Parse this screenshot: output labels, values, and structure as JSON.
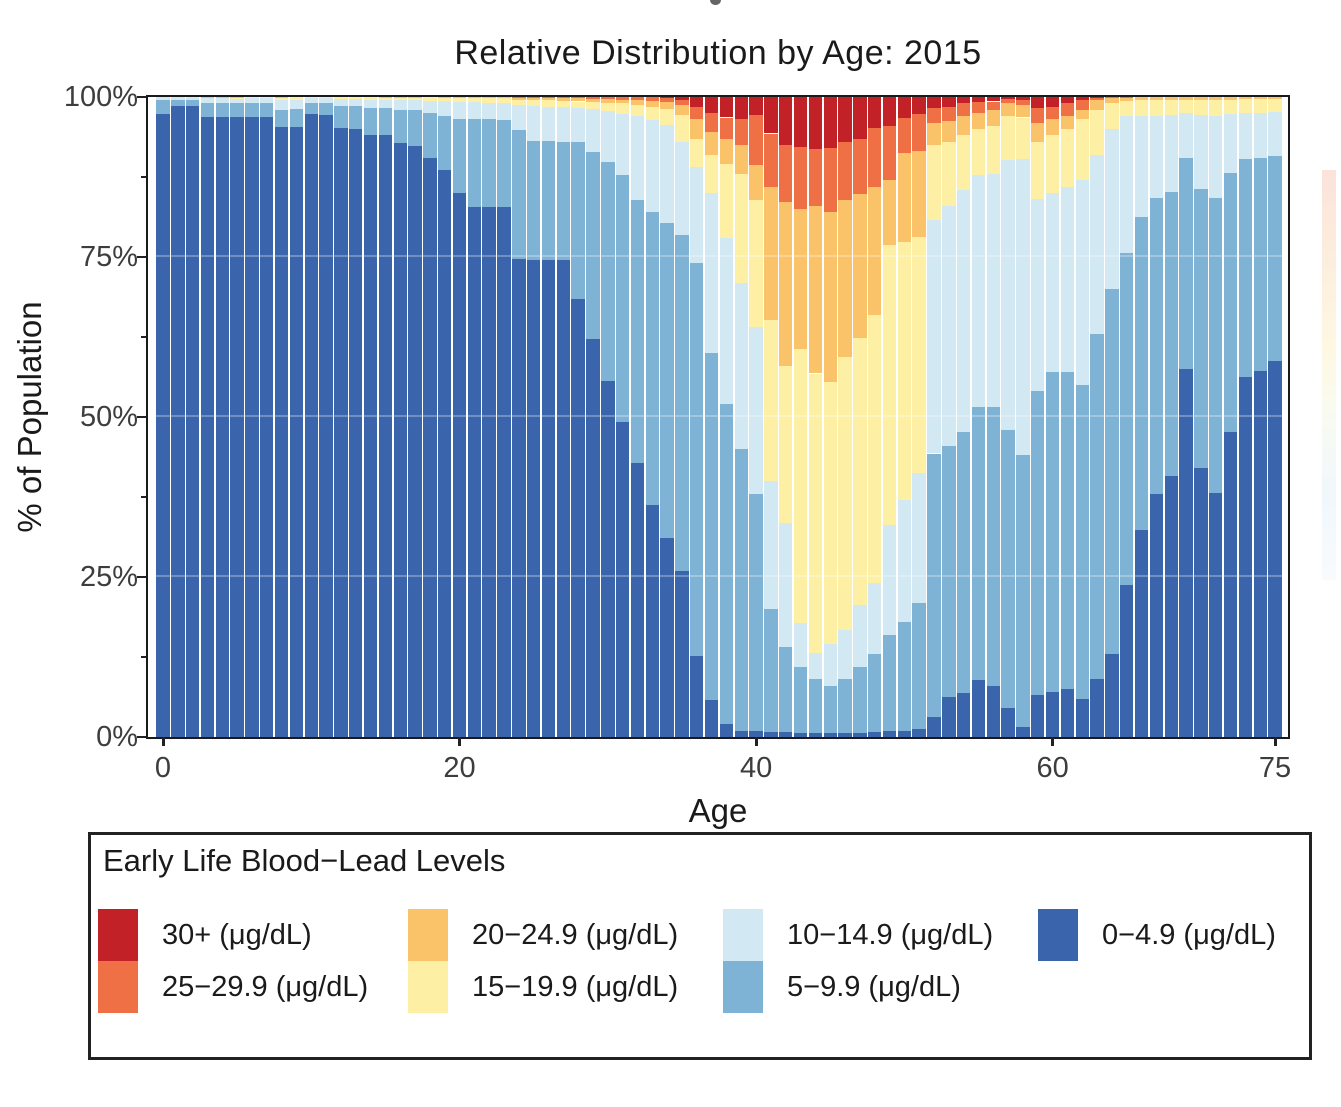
{
  "title": "Relative Distribution by Age: 2015",
  "y_axis": {
    "label": "% of Population",
    "ticks": [
      "100%",
      "75%",
      "50%",
      "25%",
      "0%"
    ],
    "tick_values": [
      100,
      75,
      50,
      25,
      0
    ],
    "minor_tick_values": [
      87.5,
      62.5,
      37.5,
      12.5
    ]
  },
  "x_axis": {
    "label": "Age",
    "ticks": [
      "0",
      "20",
      "40",
      "60",
      "75"
    ],
    "tick_values": [
      0,
      20,
      40,
      60,
      75
    ]
  },
  "legend": {
    "title": "Early Life Blood−Lead Levels",
    "items": [
      {
        "label": "30+ (μg/dL)",
        "color": "#c22127"
      },
      {
        "label": "25−29.9 (μg/dL)",
        "color": "#ef7044"
      },
      {
        "label": "20−24.9 (μg/dL)",
        "color": "#fbc369"
      },
      {
        "label": "15−19.9 (μg/dL)",
        "color": "#fdf0a5"
      },
      {
        "label": "10−14.9 (μg/dL)",
        "color": "#d2e8f3"
      },
      {
        "label": "5−9.9 (μg/dL)",
        "color": "#7fb3d6"
      },
      {
        "label": "0−4.9 (μg/dL)",
        "color": "#3a64ab"
      }
    ]
  },
  "colors": {
    "background": "#ffffff",
    "panel_border": "#1a1a1a",
    "axis_text": "#3d3d3d",
    "gridline_overlay": "rgba(255,255,255,0.28)"
  },
  "chart_data": {
    "type": "bar",
    "stacked": true,
    "normalized_percent": true,
    "title": "Relative Distribution by Age: 2015",
    "xlabel": "Age",
    "ylabel": "% of Population",
    "ylim": [
      0,
      100
    ],
    "xlim": [
      0,
      75
    ],
    "grid": "faint horizontal lines at 25/50/75",
    "legend_position": "bottom box",
    "x": [
      0,
      1,
      2,
      3,
      4,
      5,
      6,
      7,
      8,
      9,
      10,
      11,
      12,
      13,
      14,
      15,
      16,
      17,
      18,
      19,
      20,
      21,
      22,
      23,
      24,
      25,
      26,
      27,
      28,
      29,
      30,
      31,
      32,
      33,
      34,
      35,
      36,
      37,
      38,
      39,
      40,
      41,
      42,
      43,
      44,
      45,
      46,
      47,
      48,
      49,
      50,
      51,
      52,
      53,
      54,
      55,
      56,
      57,
      58,
      59,
      60,
      61,
      62,
      63,
      64,
      65,
      66,
      67,
      68,
      69,
      70,
      71,
      72,
      73,
      74,
      75
    ],
    "value_encoding": "cumulative_top_percent = top boundary of each stacked segment (%); segment value = top minus previous series top; series listed bottom-to-top",
    "series": [
      {
        "name": "0−4.9 (μg/dL)",
        "color": "#3a64ab",
        "cumulative_top_percent": [
          97.3,
          98.6,
          98.6,
          96.8,
          96.8,
          96.8,
          96.8,
          96.9,
          95.3,
          95.3,
          97.3,
          97.2,
          95.2,
          95.0,
          94.0,
          94.0,
          92.8,
          92.4,
          90.5,
          88.6,
          85.0,
          82.8,
          82.8,
          82.8,
          74.7,
          74.5,
          74.5,
          74.5,
          68.4,
          62.2,
          55.6,
          49.2,
          42.8,
          36.2,
          31.1,
          26.0,
          12.6,
          5.8,
          2.1,
          1.0,
          1.0,
          0.8,
          0.8,
          0.7,
          0.7,
          0.6,
          0.6,
          0.7,
          0.8,
          0.9,
          1.0,
          1.2,
          3.2,
          6.3,
          6.8,
          8.9,
          7.9,
          4.5,
          1.6,
          6.5,
          7.0,
          7.5,
          6.0,
          9.0,
          13.0,
          23.8,
          32.3,
          38.0,
          40.8,
          57.5,
          42.0,
          38.2,
          47.7,
          56.3,
          57.2,
          58.8
        ]
      },
      {
        "name": "5−9.9 (μg/dL)",
        "color": "#7fb3d6",
        "cumulative_top_percent": [
          99.5,
          99.6,
          99.6,
          99.0,
          99.0,
          99.0,
          99.0,
          99.1,
          98.0,
          98.1,
          99.0,
          99.0,
          98.6,
          98.6,
          98.3,
          98.3,
          98.0,
          97.9,
          97.5,
          97.0,
          96.6,
          96.5,
          96.5,
          96.4,
          94.8,
          93.2,
          93.2,
          93.0,
          93.0,
          91.4,
          89.8,
          87.8,
          83.9,
          82.0,
          80.3,
          78.4,
          74.0,
          60.0,
          52.0,
          45.0,
          38.0,
          20.0,
          14.0,
          11.0,
          9.0,
          8.0,
          9.0,
          11.0,
          13.0,
          16.0,
          18.0,
          21.0,
          44.3,
          45.4,
          47.7,
          51.6,
          51.5,
          48.0,
          44.0,
          54.0,
          57.0,
          57.0,
          55.0,
          63.0,
          70.0,
          75.6,
          81.3,
          84.2,
          85.2,
          90.4,
          85.7,
          84.2,
          88.1,
          90.3,
          90.4,
          90.8
        ]
      },
      {
        "name": "10−14.9 (μg/dL)",
        "color": "#d2e8f3",
        "cumulative_top_percent": [
          100,
          100,
          100,
          99.8,
          99.8,
          99.7,
          99.8,
          99.8,
          99.5,
          99.6,
          99.8,
          99.8,
          99.7,
          99.7,
          99.6,
          99.6,
          99.5,
          99.5,
          99.4,
          99.3,
          99.2,
          99.2,
          99.1,
          99.0,
          98.8,
          98.6,
          98.5,
          98.4,
          98.3,
          98.1,
          97.8,
          97.4,
          97.0,
          96.4,
          95.6,
          93.0,
          89.0,
          85.0,
          78.0,
          71.0,
          64.1,
          40.0,
          33.4,
          17.8,
          13.1,
          14.6,
          16.7,
          20.6,
          24.0,
          33.1,
          37.0,
          41.2,
          80.8,
          82.9,
          85.5,
          87.8,
          88.0,
          90.2,
          90.3,
          84.0,
          85.0,
          86.0,
          87.0,
          91.0,
          95.0,
          97.0,
          97.0,
          97.0,
          97.2,
          97.5,
          97.2,
          97.0,
          97.3,
          97.5,
          97.5,
          97.6
        ]
      },
      {
        "name": "15−19.9 (μg/dL)",
        "color": "#fdf0a5",
        "cumulative_top_percent": [
          100,
          100,
          100,
          99.8,
          99.8,
          99.8,
          100,
          100,
          99.9,
          100,
          100,
          100,
          100,
          100,
          100,
          99.9,
          99.9,
          99.9,
          100,
          99.8,
          99.8,
          99.9,
          99.8,
          99.8,
          99.6,
          99.5,
          99.5,
          99.4,
          99.3,
          99.2,
          99.1,
          99.0,
          98.8,
          98.5,
          98.1,
          97.2,
          93.5,
          91.0,
          89.5,
          88.0,
          83.9,
          65.2,
          57.9,
          60.7,
          56.8,
          55.5,
          59.4,
          62.3,
          65.9,
          76.9,
          77.4,
          78.2,
          92.5,
          93.0,
          94.0,
          95.0,
          95.5,
          97.0,
          96.8,
          93.0,
          94.0,
          95.0,
          96.5,
          98.0,
          99.0,
          99.4,
          99.5,
          99.5,
          99.6,
          99.6,
          99.6,
          99.5,
          99.6,
          99.7,
          99.7,
          99.7
        ]
      },
      {
        "name": "20−24.9 (μg/dL)",
        "color": "#fbc369",
        "cumulative_top_percent": [
          100,
          100,
          100,
          100,
          100,
          100,
          100,
          100,
          100,
          100,
          100,
          100,
          100,
          100,
          100,
          100,
          100,
          100,
          100,
          100,
          100,
          100,
          100,
          100,
          99.9,
          99.9,
          99.9,
          99.9,
          99.8,
          99.7,
          99.7,
          99.6,
          99.5,
          99.4,
          99.2,
          98.7,
          96.5,
          94.5,
          93.5,
          92.5,
          89.4,
          86.0,
          83.6,
          82.5,
          82.9,
          82.0,
          83.9,
          84.9,
          86.0,
          87.0,
          91.2,
          91.5,
          96.0,
          96.3,
          97.0,
          97.5,
          98.0,
          99.0,
          98.8,
          96.0,
          96.5,
          97.0,
          98.0,
          99.5,
          99.8,
          99.9,
          100,
          100,
          100,
          100,
          100,
          100,
          100,
          100,
          100,
          100
        ]
      },
      {
        "name": "25−29.9 (μg/dL)",
        "color": "#ef7044",
        "cumulative_top_percent": [
          100,
          100,
          100,
          100,
          100,
          100,
          100,
          100,
          100,
          100,
          100,
          100,
          100,
          100,
          100,
          100,
          100,
          100,
          100,
          100,
          100,
          100,
          100,
          100,
          100,
          100,
          100,
          100,
          100,
          100,
          100,
          100,
          100,
          100,
          99.8,
          99.6,
          98.4,
          97.5,
          96.8,
          96.5,
          97.2,
          94.3,
          92.5,
          92.2,
          91.9,
          92.0,
          93.0,
          93.5,
          95.1,
          95.4,
          96.7,
          97.4,
          98.3,
          98.5,
          99.0,
          99.2,
          99.3,
          99.7,
          99.6,
          98.3,
          98.5,
          99.0,
          99.5,
          99.8,
          100,
          100,
          100,
          100,
          100,
          100,
          100,
          100,
          100,
          100,
          100,
          100
        ]
      },
      {
        "name": "30+ (μg/dL)",
        "color": "#c22127",
        "cumulative_top_percent": [
          100,
          100,
          100,
          100,
          100,
          100,
          100,
          100,
          100,
          100,
          100,
          100,
          100,
          100,
          100,
          100,
          100,
          100,
          100,
          100,
          100,
          100,
          100,
          100,
          100,
          100,
          100,
          100,
          100,
          100,
          100,
          100,
          100,
          100,
          100,
          100,
          100,
          100,
          100,
          100,
          100,
          100,
          100,
          100,
          100,
          100,
          100,
          100,
          100,
          100,
          100,
          100,
          100,
          100,
          100,
          100,
          100,
          100,
          100,
          100,
          100,
          100,
          100,
          100,
          100,
          100,
          100,
          100,
          100,
          100,
          100,
          100,
          100,
          100,
          100,
          100
        ]
      }
    ]
  }
}
